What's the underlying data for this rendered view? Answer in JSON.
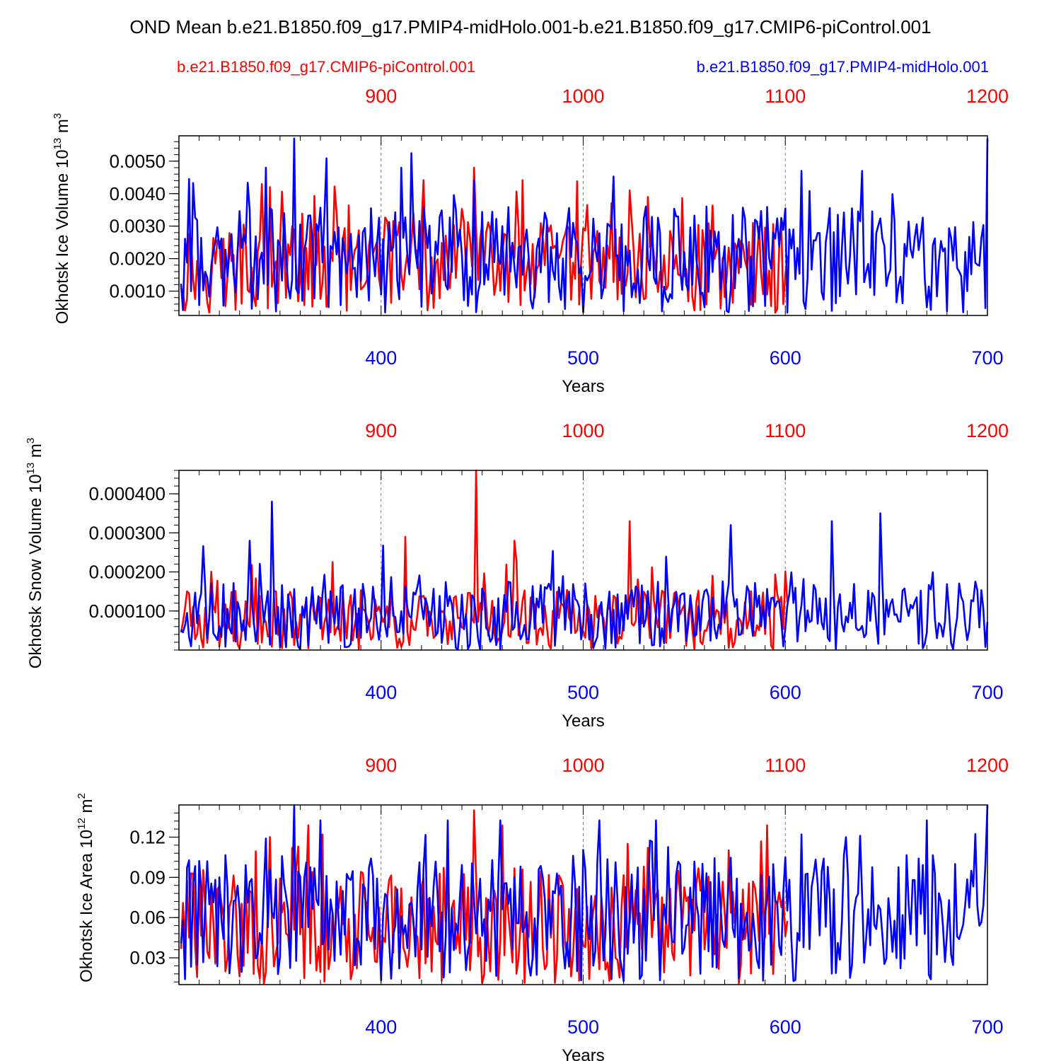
{
  "title": "OND Mean b.e21.B1850.f09_g17.PMIP4-midHolo.001-b.e21.B1850.f09_g17.CMIP6-piControl.001",
  "legend": {
    "red_label": "b.e21.B1850.f09_g17.CMIP6-piControl.001",
    "blue_label": "b.e21.B1850.f09_g17.PMIP4-midHolo.001"
  },
  "colors": {
    "piControl": "#ff0000",
    "midHolo": "#0000ff",
    "axis": "#000000",
    "grid": "#808080"
  },
  "chart_data": [
    {
      "type": "line",
      "ylabel": "Okhotsk Ice Volume",
      "ylabel_unit": "10",
      "ylabel_exp": "13",
      "ylabel_tail": "m",
      "ylabel_tail_exp": "3",
      "xlabel": "Years",
      "bottom_ticks": [
        "400",
        "500",
        "600",
        "700"
      ],
      "top_ticks": [
        "900",
        "1000",
        "1100",
        "1200"
      ],
      "y_ticks": [
        "0.0010",
        "0.0020",
        "0.0030",
        "0.0040",
        "0.0050"
      ],
      "ylim": [
        0.00025,
        0.00578
      ],
      "xlim_bottom": [
        300,
        700
      ],
      "xlim_top": [
        800,
        1200
      ],
      "grid": "dashed verticals at 400, 500, 600",
      "series": [
        {
          "name": "b.e21.B1850.f09_g17.CMIP6-piControl.001",
          "x_axis": "top",
          "x_start": 801,
          "x_end": 1101,
          "min": 0.0003,
          "max": 0.0048,
          "mean": 0.0016,
          "peaks": [
            [
              841,
              0.0043
            ],
            [
              845,
              0.0042
            ],
            [
              946,
              0.0048
            ],
            [
              1023,
              0.0041
            ],
            [
              1032,
              0.0039
            ]
          ]
        },
        {
          "name": "b.e21.B1850.f09_g17.PMIP4-midHolo.001",
          "x_axis": "bottom",
          "x_start": 301,
          "x_end": 700,
          "min": 0.0003,
          "max": 0.0057,
          "mean": 0.0018,
          "peaks": [
            [
              343,
              0.0048
            ],
            [
              357,
              0.0057
            ],
            [
              410,
              0.0048
            ],
            [
              446,
              0.0044
            ],
            [
              608,
              0.0047
            ],
            [
              638,
              0.0047
            ],
            [
              700,
              0.0057
            ]
          ]
        }
      ]
    },
    {
      "type": "line",
      "ylabel": "Okhotsk Snow Volume",
      "ylabel_unit": "10",
      "ylabel_exp": "13",
      "ylabel_tail": "m",
      "ylabel_tail_exp": "3",
      "xlabel": "Years",
      "bottom_ticks": [
        "400",
        "500",
        "600",
        "700"
      ],
      "top_ticks": [
        "900",
        "1000",
        "1100",
        "1200"
      ],
      "y_ticks": [
        "0.000100",
        "0.000200",
        "0.000300",
        "0.000400"
      ],
      "ylim": [
        0.0,
        0.00046
      ],
      "xlim_bottom": [
        300,
        700
      ],
      "xlim_top": [
        800,
        1200
      ],
      "grid": "dashed verticals at 400, 500, 600",
      "series": [
        {
          "name": "b.e21.B1850.f09_g17.CMIP6-piControl.001",
          "x_axis": "top",
          "x_start": 801,
          "x_end": 1101,
          "min": 0.0,
          "max": 0.00046,
          "mean": 7e-05,
          "peaks": [
            [
              912,
              0.00029
            ],
            [
              947,
              0.00046
            ],
            [
              966,
              0.00028
            ],
            [
              1023,
              0.00033
            ],
            [
              1064,
              0.00019
            ]
          ]
        },
        {
          "name": "b.e21.B1850.f09_g17.PMIP4-midHolo.001",
          "x_axis": "bottom",
          "x_start": 301,
          "x_end": 700,
          "min": 0.0,
          "max": 0.00038,
          "mean": 8e-05,
          "peaks": [
            [
              335,
              0.00028
            ],
            [
              346,
              0.00038
            ],
            [
              573,
              0.00032
            ],
            [
              623,
              0.00033
            ],
            [
              647,
              0.00035
            ]
          ]
        }
      ]
    },
    {
      "type": "line",
      "ylabel": "Okhotsk Ice Area",
      "ylabel_unit": "10",
      "ylabel_exp": "12",
      "ylabel_tail": "m",
      "ylabel_tail_exp": "2",
      "xlabel": "Years",
      "bottom_ticks": [
        "400",
        "500",
        "600",
        "700"
      ],
      "top_ticks": [
        "900",
        "1000",
        "1100",
        "1200"
      ],
      "y_ticks": [
        "0.03",
        "0.06",
        "0.09",
        "0.12"
      ],
      "ylim": [
        0.01,
        0.144
      ],
      "xlim_bottom": [
        300,
        700
      ],
      "xlim_top": [
        800,
        1200
      ],
      "grid": "dashed verticals at 400, 500, 600",
      "series": [
        {
          "name": "b.e21.B1850.f09_g17.CMIP6-piControl.001",
          "x_axis": "top",
          "x_start": 801,
          "x_end": 1101,
          "min": 0.01,
          "max": 0.14,
          "mean": 0.05,
          "peaks": [
            [
              856,
              0.112
            ],
            [
              859,
              0.113
            ],
            [
              946,
              0.14
            ],
            [
              1022,
              0.115
            ],
            [
              1032,
              0.112
            ]
          ]
        },
        {
          "name": "b.e21.B1850.f09_g17.PMIP4-midHolo.001",
          "x_axis": "bottom",
          "x_start": 301,
          "x_end": 700,
          "min": 0.012,
          "max": 0.144,
          "mean": 0.055,
          "peaks": [
            [
              343,
              0.119
            ],
            [
              357,
              0.144
            ],
            [
              608,
              0.122
            ],
            [
              637,
              0.121
            ],
            [
              700,
              0.144
            ]
          ]
        }
      ]
    }
  ]
}
